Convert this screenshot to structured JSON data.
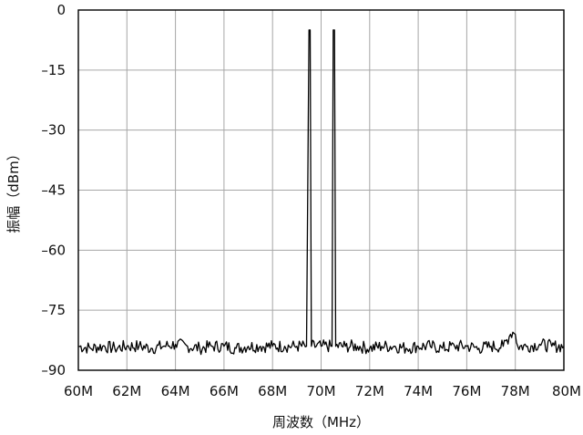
{
  "chart_data": {
    "type": "line",
    "title": "",
    "xlabel": "周波数（MHz）",
    "ylabel": "振幅（dBm）",
    "xlim": [
      60,
      80
    ],
    "ylim": [
      -90,
      0
    ],
    "x_ticks": [
      60,
      62,
      64,
      66,
      68,
      70,
      72,
      74,
      76,
      78,
      80
    ],
    "x_tick_labels": [
      "60M",
      "62M",
      "64M",
      "66M",
      "68M",
      "70M",
      "72M",
      "74M",
      "76M",
      "78M",
      "80M"
    ],
    "y_ticks": [
      0,
      -15,
      -30,
      -45,
      -60,
      -75,
      -90
    ],
    "y_tick_labels": [
      "0",
      "–15",
      "–30",
      "–45",
      "–60",
      "–75",
      "–90"
    ],
    "grid": true,
    "line_color": "#000000",
    "noise_floor_dbm": -84,
    "series": [
      {
        "x": [
          60,
          60.5,
          61,
          61.5,
          62,
          62.5,
          63,
          63.5,
          64,
          64.5,
          65,
          65.5,
          66,
          66.5,
          67,
          67.5,
          68,
          68.5,
          69,
          69.4,
          69.5,
          69.55,
          69.6,
          70,
          70.4,
          70.45,
          70.5,
          70.55,
          70.6,
          71,
          71.5,
          72,
          72.5,
          73,
          73.5,
          74,
          74.5,
          75,
          75.5,
          76,
          76.5,
          77,
          77.5,
          77.8,
          77.9,
          78,
          78.1,
          78.5,
          79,
          79.5,
          80
        ],
        "y": [
          -84,
          -84.5,
          -84,
          -84.5,
          -84,
          -84,
          -84.5,
          -84,
          -83.5,
          -84,
          -84.5,
          -84,
          -84,
          -84.5,
          -84,
          -84,
          -84,
          -84,
          -84,
          -84,
          -5,
          -5,
          -84,
          -84,
          -84,
          -84,
          -5,
          -5,
          -84,
          -84,
          -84,
          -84.5,
          -84,
          -84,
          -84.5,
          -84,
          -84,
          -84.5,
          -84,
          -84,
          -84.5,
          -84,
          -84,
          -81,
          -80.5,
          -81,
          -84,
          -84,
          -83.5,
          -84,
          -84
        ]
      }
    ]
  }
}
